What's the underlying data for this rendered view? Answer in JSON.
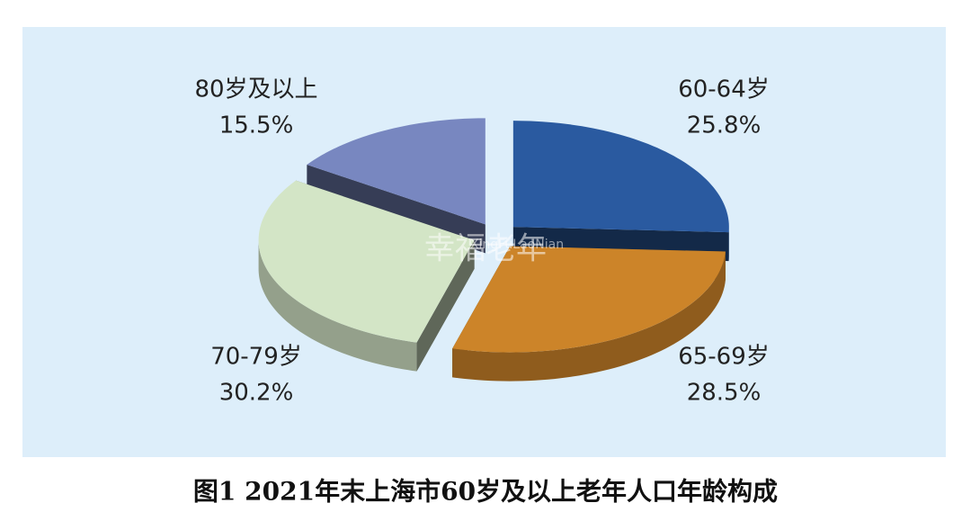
{
  "chart_data": {
    "type": "pie3d",
    "title": "图1  2021年末上海市60岁及以上老年人口年龄构成",
    "categories": [
      "60-64岁",
      "65-69岁",
      "70-79岁",
      "80岁及以上"
    ],
    "values": [
      25.8,
      28.5,
      30.2,
      15.5
    ],
    "value_labels": [
      "25.8%",
      "28.5%",
      "30.2%",
      "15.5%"
    ],
    "colors": [
      "#2a5aa0",
      "#cc8429",
      "#d3e5c6",
      "#7887c0"
    ],
    "watermark": "幸福老年",
    "watermark_latin": "XingFuLaoNian"
  }
}
